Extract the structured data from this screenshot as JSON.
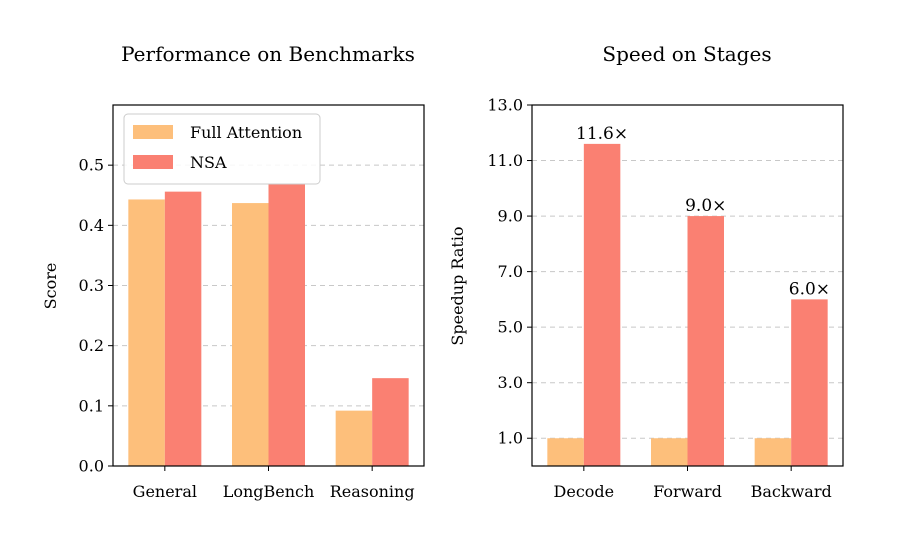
{
  "chart_data": [
    {
      "type": "bar",
      "title": "Performance on Benchmarks",
      "xlabel": "",
      "ylabel": "Score",
      "categories": [
        "General",
        "LongBench",
        "Reasoning"
      ],
      "series": [
        {
          "name": "Full Attention",
          "color": "#FDBF7B",
          "values": [
            0.443,
            0.437,
            0.092
          ]
        },
        {
          "name": "NSA",
          "color": "#FA8072",
          "values": [
            0.456,
            0.469,
            0.146
          ]
        }
      ],
      "ylim": [
        0,
        0.6
      ],
      "yticks": [
        "0.0",
        "0.1",
        "0.2",
        "0.3",
        "0.4",
        "0.5"
      ],
      "ytick_values": [
        0,
        0.1,
        0.2,
        0.3,
        0.4,
        0.5
      ],
      "grid": "y-dashed",
      "legend": "top-left"
    },
    {
      "type": "bar",
      "title": "Speed on Stages",
      "xlabel": "",
      "ylabel": "Speedup Ratio",
      "categories": [
        "Decode",
        "Forward",
        "Backward"
      ],
      "series": [
        {
          "name": "Full Attention",
          "color": "#FDBF7B",
          "values": [
            1.0,
            1.0,
            1.0
          ]
        },
        {
          "name": "NSA",
          "color": "#FA8072",
          "values": [
            11.6,
            9.0,
            6.0
          ]
        }
      ],
      "annotations": [
        "11.6×",
        "9.0×",
        "6.0×"
      ],
      "ylim": [
        0,
        13.0
      ],
      "yticks": [
        "1.0",
        "3.0",
        "5.0",
        "7.0",
        "9.0",
        "11.0",
        "13.0"
      ],
      "ytick_values": [
        1,
        3,
        5,
        7,
        9,
        11,
        13
      ],
      "grid": "y-dashed"
    }
  ]
}
